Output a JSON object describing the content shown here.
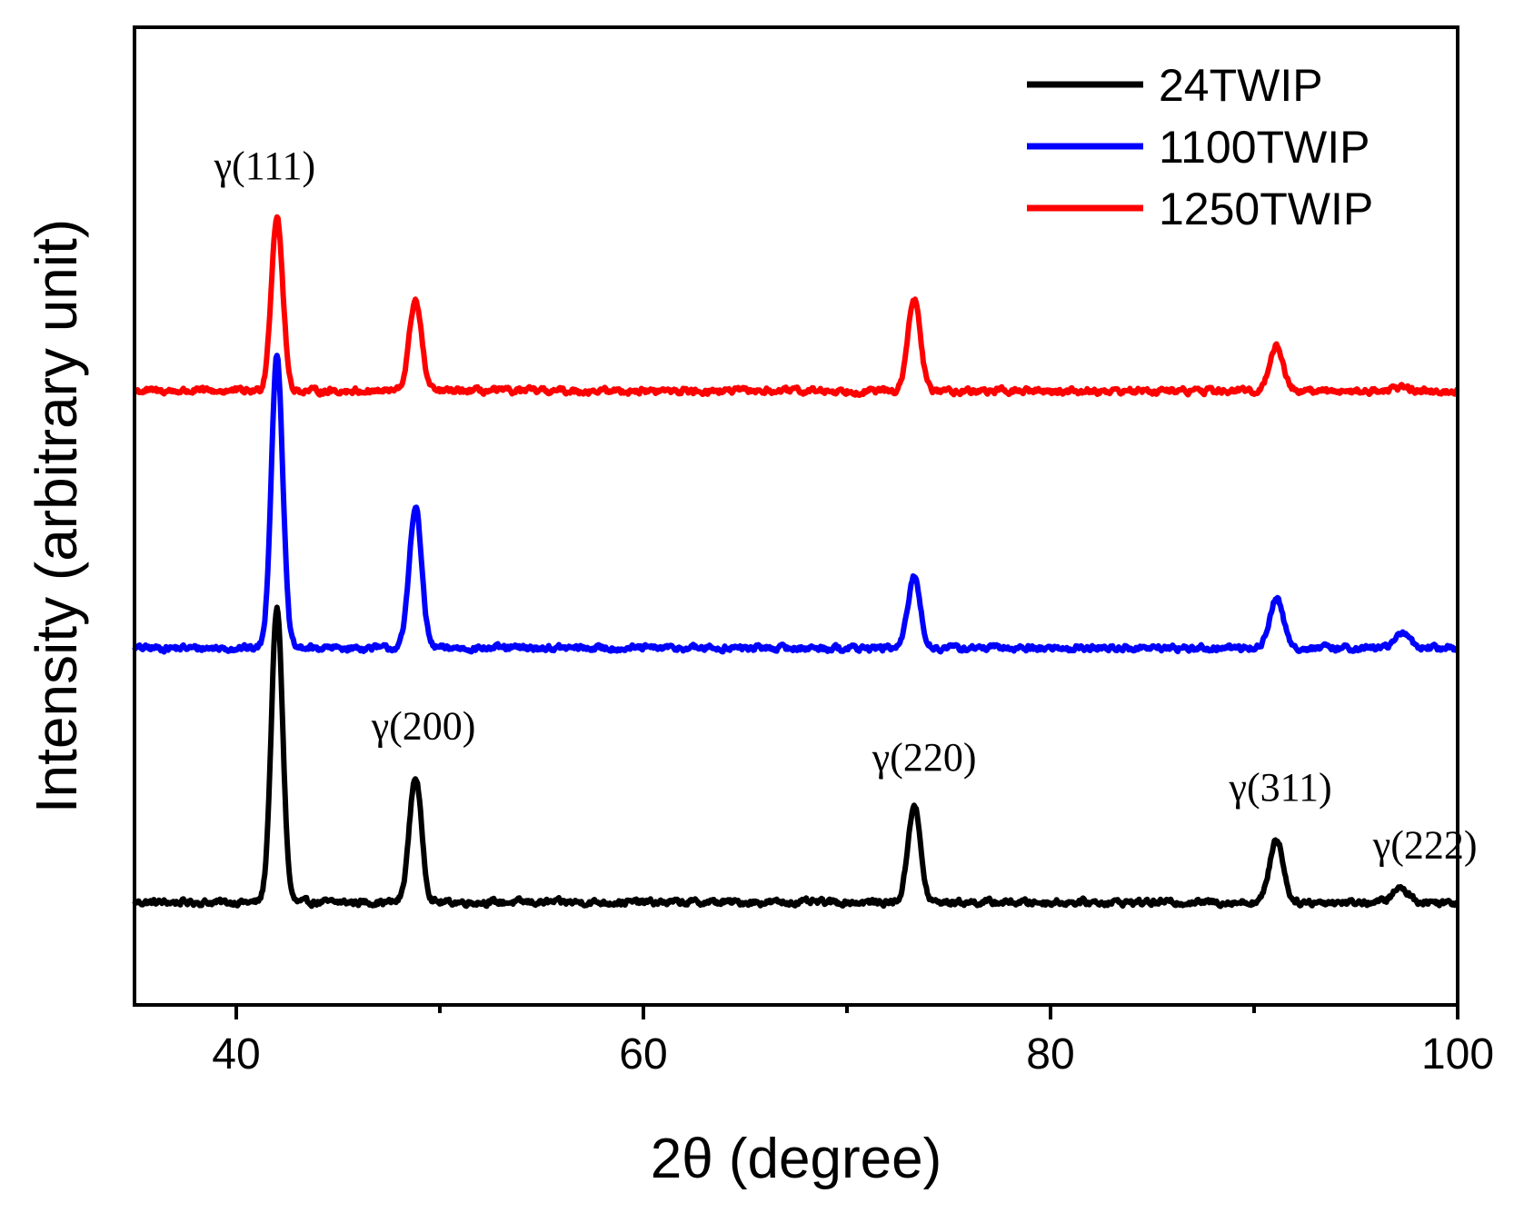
{
  "chart_data": {
    "type": "line",
    "title": "",
    "xlabel": "2θ (degree)",
    "ylabel": "Intensity (arbitrary unit)",
    "xlim": [
      35,
      100
    ],
    "ylim": [
      0,
      100
    ],
    "x_ticks": [
      40,
      60,
      80,
      100
    ],
    "x_tick_labels": [
      "40",
      "60",
      "80",
      "100"
    ],
    "x_minor_ticks": [
      50,
      70,
      90
    ],
    "y_ticks_visible": false,
    "grid": false,
    "legend_position": "top-right",
    "series": [
      {
        "name": "24TWIP",
        "color": "#000000",
        "baseline": 10.5,
        "peaks": [
          {
            "x": 42.0,
            "height": 30.0,
            "width": 0.28
          },
          {
            "x": 48.8,
            "height": 12.8,
            "width": 0.3
          },
          {
            "x": 73.3,
            "height": 10.0,
            "width": 0.3
          },
          {
            "x": 91.1,
            "height": 6.5,
            "width": 0.33
          },
          {
            "x": 97.2,
            "height": 1.4,
            "width": 0.4
          }
        ]
      },
      {
        "name": "1100TWIP",
        "color": "#0000ff",
        "baseline": 36.5,
        "peaks": [
          {
            "x": 42.0,
            "height": 30.0,
            "width": 0.28
          },
          {
            "x": 48.8,
            "height": 14.5,
            "width": 0.3
          },
          {
            "x": 73.3,
            "height": 7.3,
            "width": 0.3
          },
          {
            "x": 91.1,
            "height": 5.1,
            "width": 0.33
          },
          {
            "x": 97.3,
            "height": 1.4,
            "width": 0.4
          }
        ]
      },
      {
        "name": "1250TWIP",
        "color": "#ff0000",
        "baseline": 62.8,
        "peaks": [
          {
            "x": 42.0,
            "height": 17.9,
            "width": 0.28
          },
          {
            "x": 48.8,
            "height": 9.3,
            "width": 0.3
          },
          {
            "x": 73.3,
            "height": 9.5,
            "width": 0.3
          },
          {
            "x": 91.1,
            "height": 4.6,
            "width": 0.33
          },
          {
            "x": 97.2,
            "height": 0.4,
            "width": 0.4
          }
        ]
      }
    ],
    "annotations": [
      {
        "text": "γ(111)",
        "x": 41.4,
        "y": 84.5
      },
      {
        "text": "γ(200)",
        "x": 49.2,
        "y": 27.2
      },
      {
        "text": "γ(220)",
        "x": 73.8,
        "y": 24.0
      },
      {
        "text": "γ(311)",
        "x": 91.3,
        "y": 20.9
      },
      {
        "text": "γ(222)",
        "x": 98.4,
        "y": 15.0
      }
    ]
  }
}
